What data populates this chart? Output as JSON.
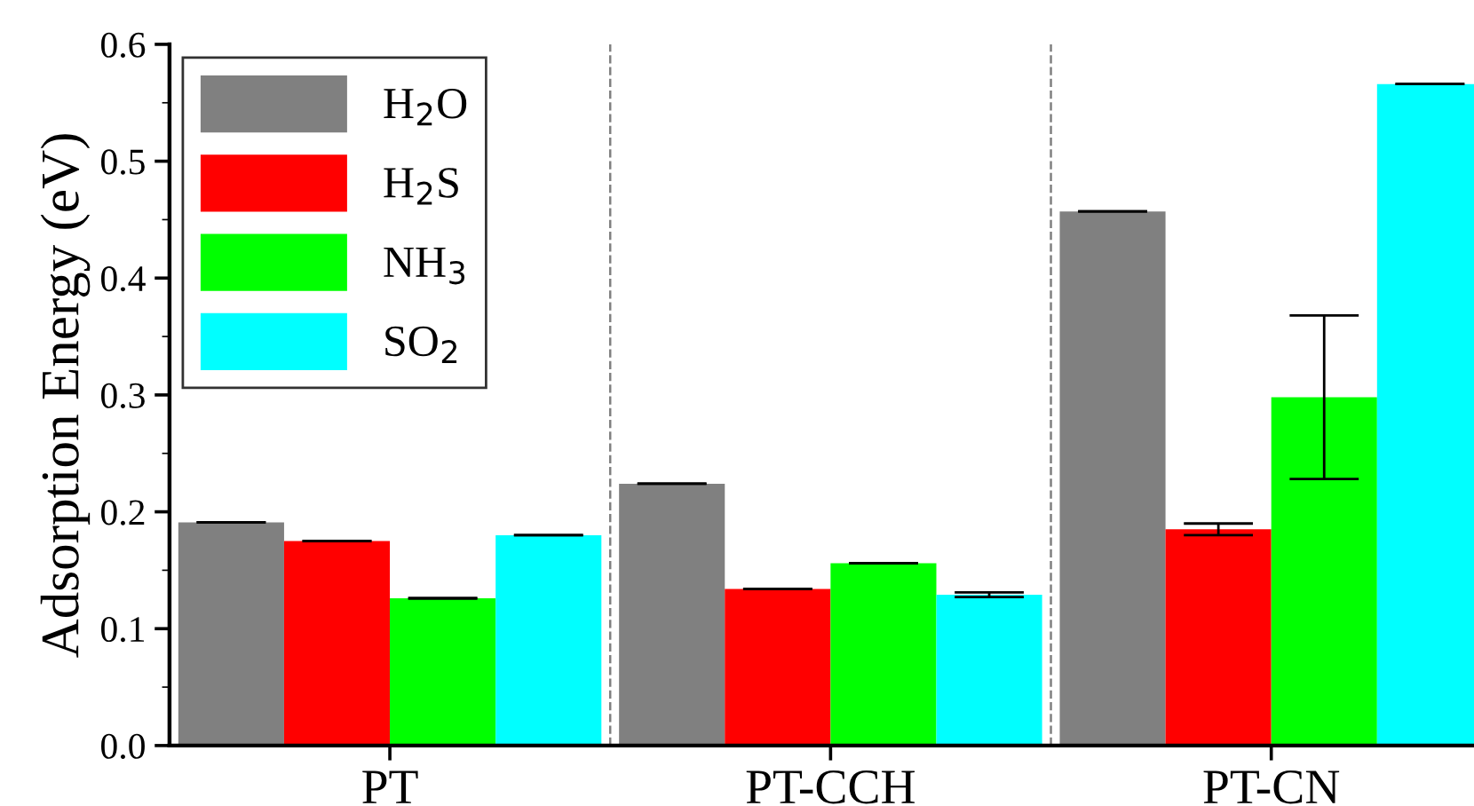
{
  "chart_data": {
    "type": "bar",
    "ylabel": "Adsorption Energy (eV)",
    "categories": [
      "PT",
      "PT-CCH",
      "PT-CN"
    ],
    "series": [
      {
        "name": "H$_{2}$O",
        "color": "#808080",
        "values": [
          0.191,
          0.224,
          0.457
        ],
        "errors": [
          0,
          0,
          0
        ]
      },
      {
        "name": "H$_{2}$S",
        "color": "#ff0000",
        "values": [
          0.175,
          0.134,
          0.185
        ],
        "errors": [
          0,
          0,
          0.005
        ]
      },
      {
        "name": "NH$_{3}$",
        "color": "#00ff00",
        "values": [
          0.126,
          0.156,
          0.298
        ],
        "errors": [
          0,
          0,
          0.07
        ]
      },
      {
        "name": "SO$_{2}$",
        "color": "#00ffff",
        "values": [
          0.18,
          0.129,
          0.566
        ],
        "errors": [
          0,
          0.002,
          0
        ]
      }
    ],
    "ylim": [
      0,
      0.6
    ],
    "yticks": [
      {
        "value": 0,
        "label": "0.0"
      },
      0.1,
      0.2,
      0.3,
      0.4,
      0.5,
      0.6
    ],
    "legend": "top left",
    "grid": false
  }
}
